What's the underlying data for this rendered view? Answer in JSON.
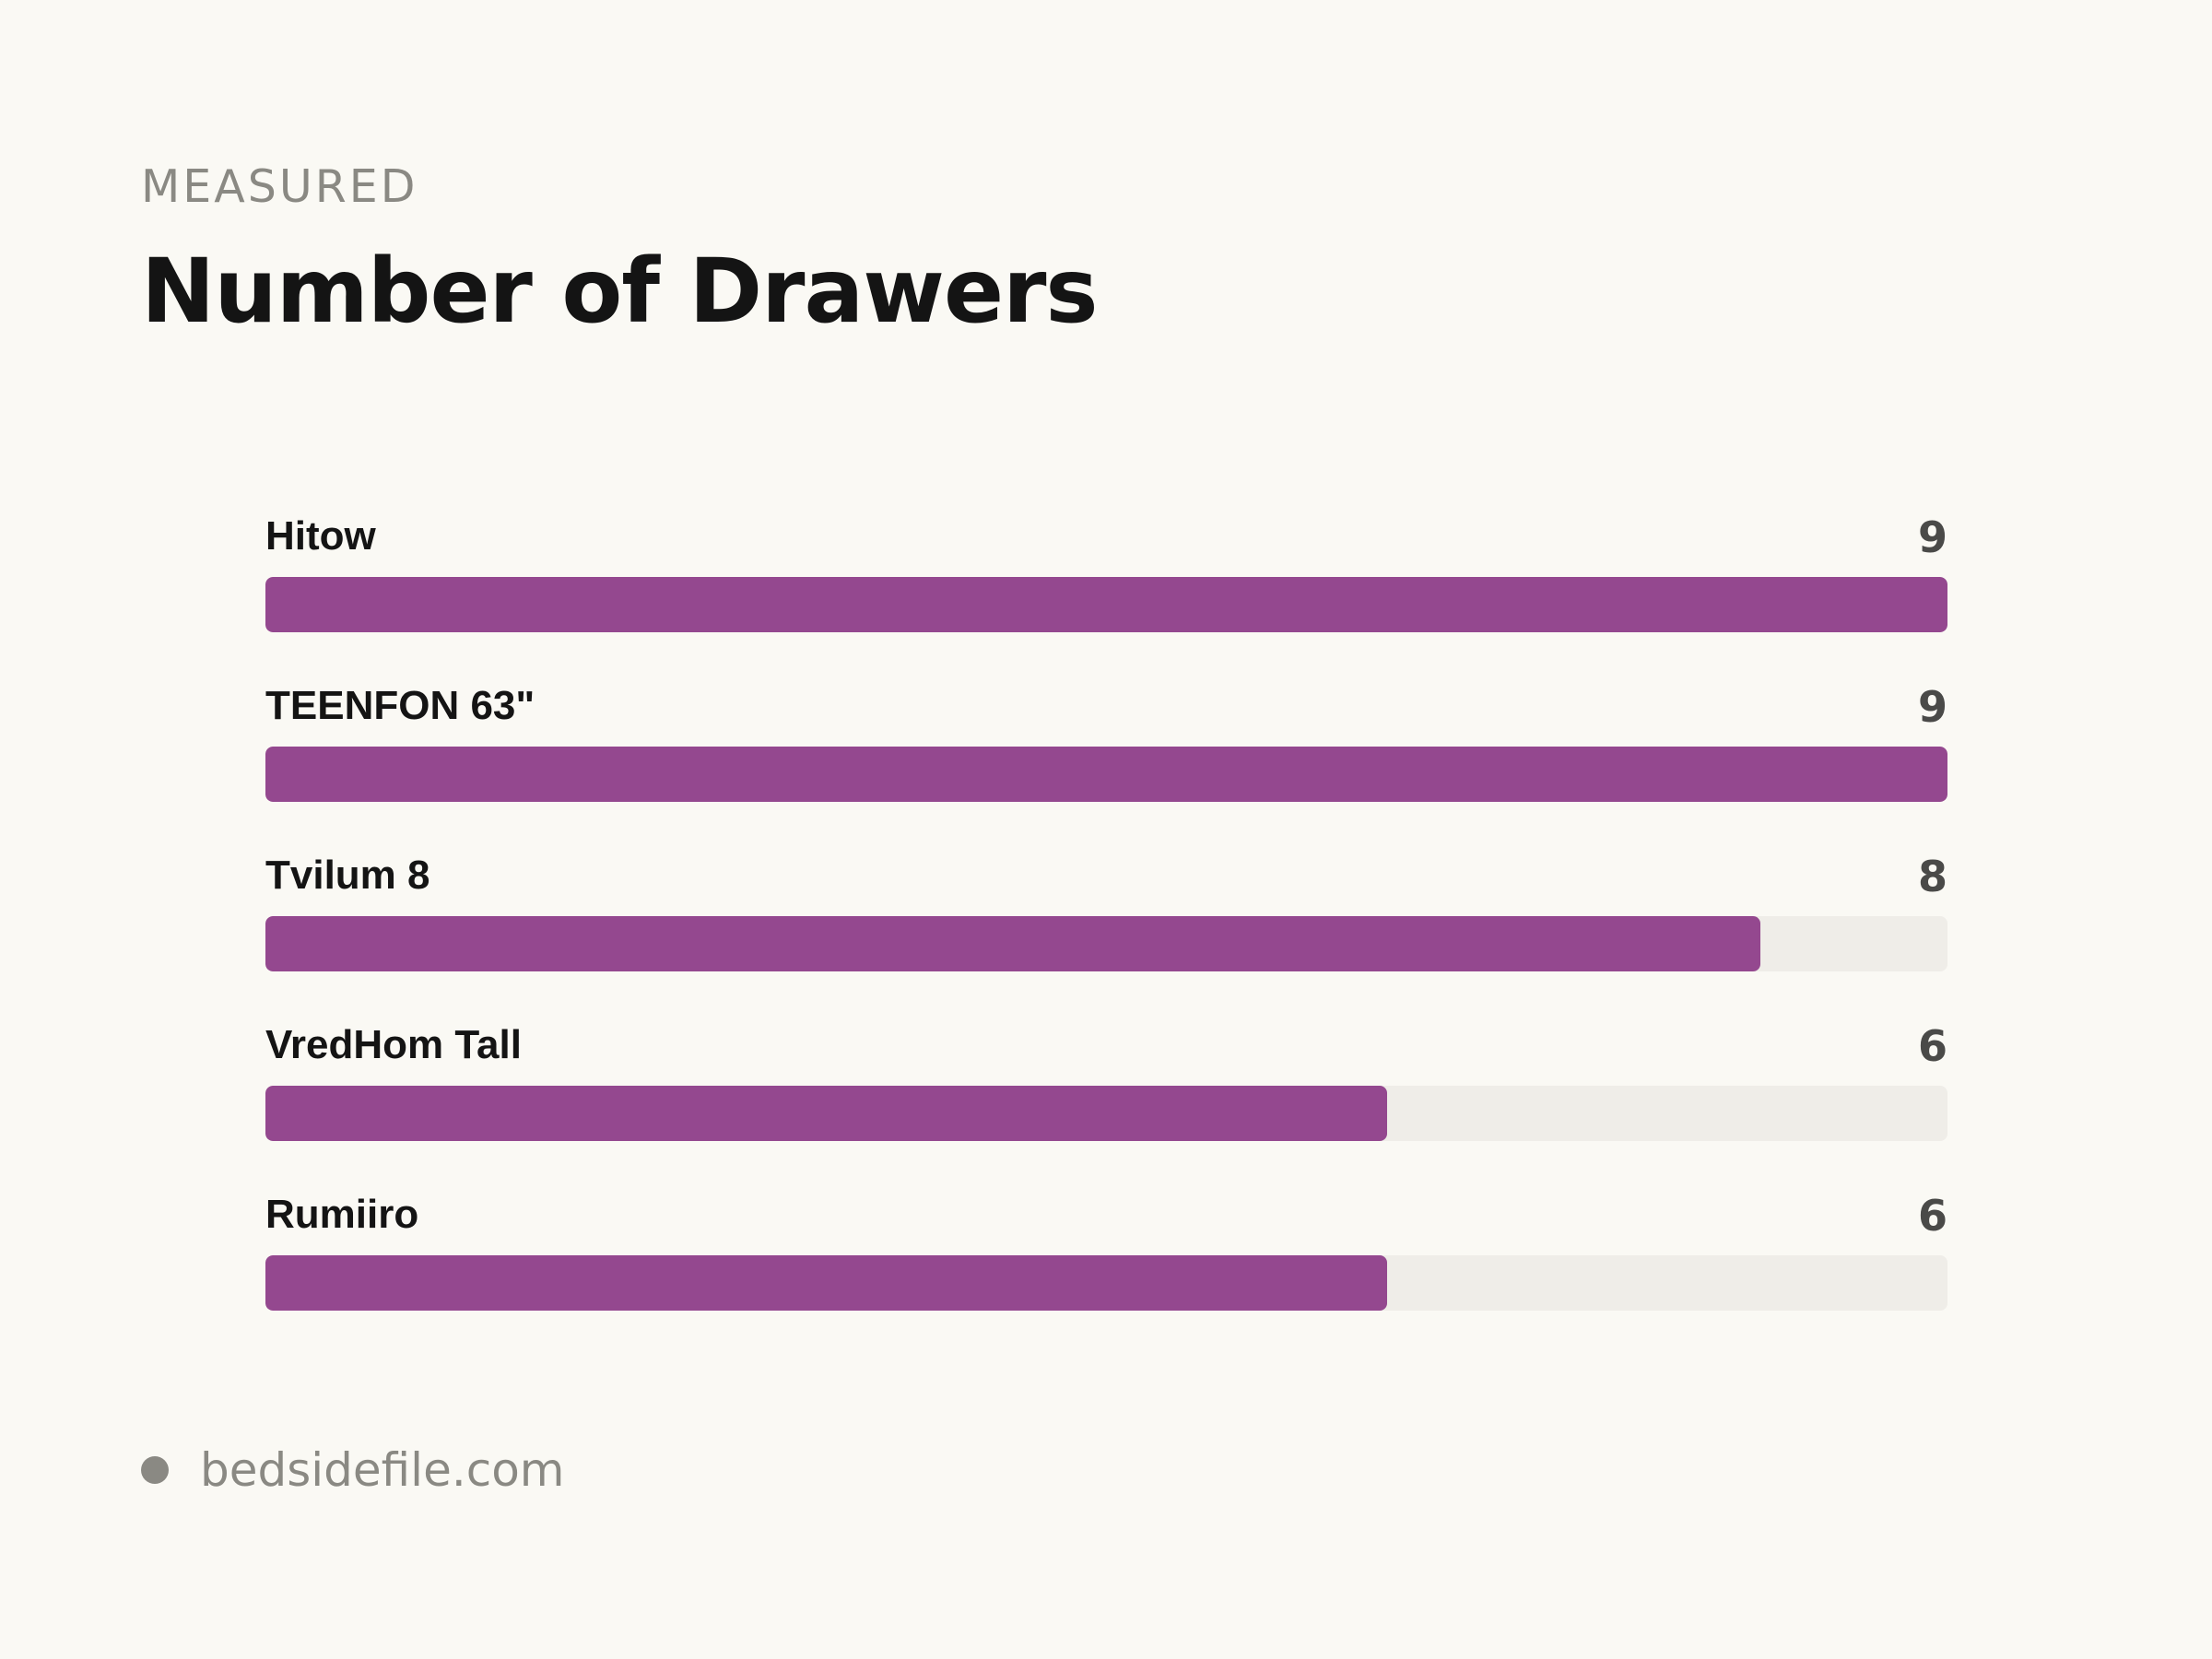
{
  "header": {
    "eyebrow": "MEASURED",
    "title": "Number of Drawers"
  },
  "colors": {
    "bar_fill": "#94488f",
    "track": "#efede8",
    "background": "#faf9f4"
  },
  "chart_data": {
    "type": "bar",
    "orientation": "horizontal",
    "title": "Number of Drawers",
    "categories": [
      "Hitow",
      "TEENFON 63\"",
      "Tvilum 8",
      "VredHom Tall",
      "Rumiiro"
    ],
    "values": [
      9,
      9,
      8,
      6,
      6
    ],
    "xlim": [
      0,
      9
    ],
    "grid": false
  },
  "footer": {
    "source": "bedsidefile.com"
  }
}
